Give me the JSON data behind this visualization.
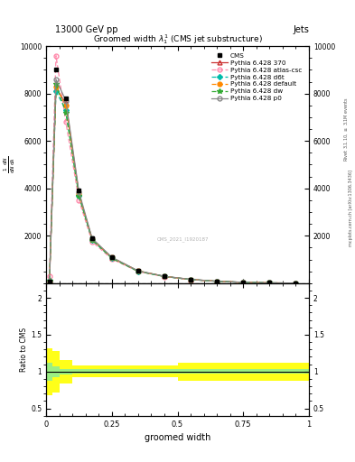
{
  "title": "Groomed width $\\lambda_{1}^{1}$ (CMS jet substructure)",
  "header_left": "13000 GeV pp",
  "header_right": "Jets",
  "xlabel": "groomed width",
  "ylabel_main": "$\\frac{1}{\\mathrm{d}N}\\frac{\\mathrm{d}N}{\\mathrm{d}\\lambda}$",
  "ylabel_ratio": "Ratio to CMS",
  "right_label_top": "Rivet 3.1.10, $\\geq$ 3.1M events",
  "right_label_bot": "mcplots.cern.ch [arXiv:1306.3436]",
  "watermark": "CMS_2021_I1920187",
  "x_bins": [
    0.0,
    0.025,
    0.05,
    0.1,
    0.15,
    0.2,
    0.3,
    0.4,
    0.5,
    0.6,
    0.7,
    0.8,
    0.9,
    1.0
  ],
  "cms_data": [
    50,
    9000,
    7800,
    3900,
    1900,
    1100,
    520,
    290,
    160,
    80,
    35,
    12,
    3
  ],
  "pythia_370": [
    30,
    8200,
    7600,
    3750,
    1850,
    1070,
    510,
    285,
    155,
    78,
    33,
    11,
    2
  ],
  "pythia_atlas_csc": [
    300,
    9600,
    6800,
    3500,
    1750,
    1020,
    490,
    275,
    150,
    75,
    31,
    10,
    2
  ],
  "pythia_d6t": [
    100,
    8100,
    7300,
    3700,
    1820,
    1060,
    505,
    282,
    153,
    77,
    32,
    11,
    2
  ],
  "pythia_default": [
    60,
    8300,
    7500,
    3760,
    1860,
    1080,
    515,
    288,
    157,
    79,
    33,
    11,
    2
  ],
  "pythia_dw": [
    120,
    8400,
    7200,
    3680,
    1830,
    1050,
    500,
    280,
    152,
    76,
    32,
    11,
    2
  ],
  "pythia_p0": [
    80,
    8600,
    7700,
    3850,
    1890,
    1095,
    520,
    290,
    158,
    80,
    34,
    11,
    2
  ],
  "color_370": "#cc3333",
  "color_atlas_csc": "#ff88aa",
  "color_d6t": "#00bbaa",
  "color_default": "#ff8800",
  "color_dw": "#33aa33",
  "color_p0": "#888888",
  "color_cms": "#000000",
  "ratio_xbins": [
    0.0,
    0.025,
    0.05,
    0.1,
    0.15,
    0.2,
    0.3,
    0.5,
    0.6,
    0.7,
    0.8,
    0.9,
    1.0
  ],
  "ratio_green_lo": [
    0.88,
    0.93,
    0.96,
    0.97,
    0.97,
    0.97,
    0.97,
    0.97,
    0.97,
    0.97,
    0.97,
    0.97
  ],
  "ratio_green_hi": [
    1.12,
    1.07,
    1.04,
    1.03,
    1.03,
    1.03,
    1.03,
    1.03,
    1.03,
    1.03,
    1.03,
    1.03
  ],
  "ratio_yellow_lo": [
    0.68,
    0.72,
    0.84,
    0.92,
    0.92,
    0.92,
    0.92,
    0.88,
    0.88,
    0.88,
    0.88,
    0.88
  ],
  "ratio_yellow_hi": [
    1.32,
    1.28,
    1.16,
    1.08,
    1.08,
    1.08,
    1.08,
    1.12,
    1.12,
    1.12,
    1.12,
    1.12
  ],
  "ylim_main": [
    0,
    10000
  ],
  "ylim_ratio": [
    0.4,
    2.2
  ],
  "yticks_main": [
    2000,
    4000,
    6000,
    8000,
    10000
  ],
  "ytick_labels_main": [
    "2000",
    "4000",
    "6000",
    "8000",
    "10000"
  ],
  "yticks_ratio": [
    0.5,
    1.0,
    1.5,
    2.0
  ],
  "ytick_labels_ratio": [
    "0.5",
    "1",
    "1.5",
    "2"
  ],
  "xlim": [
    0.0,
    1.0
  ],
  "xticks": [
    0.0,
    0.25,
    0.5,
    0.75,
    1.0
  ],
  "xtick_labels": [
    "0",
    "0.25",
    "0.5",
    "0.75",
    "1"
  ]
}
